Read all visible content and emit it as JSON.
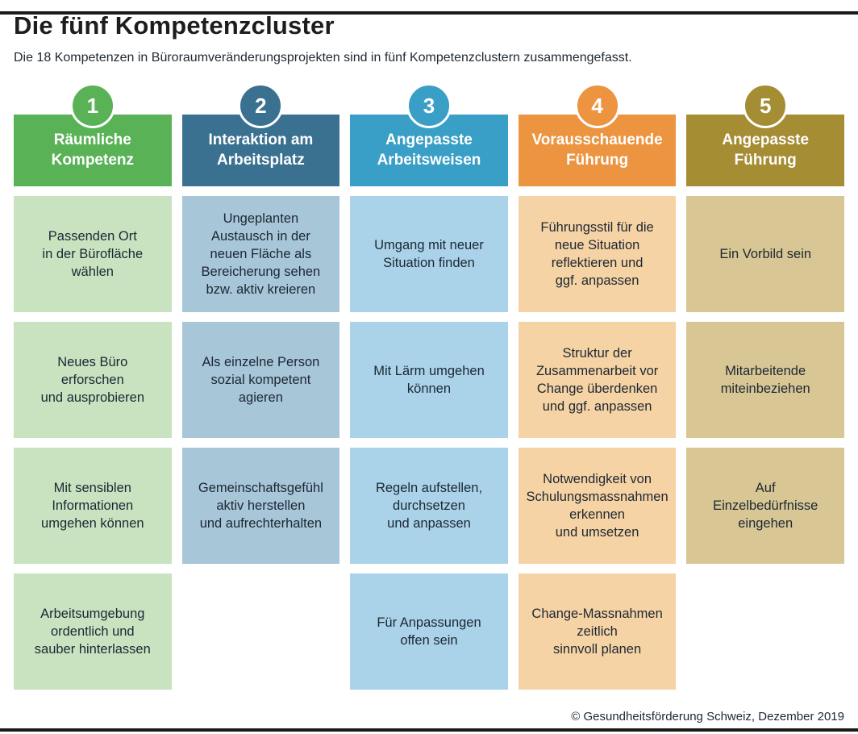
{
  "page": {
    "title": "Die fünf Kompetenzcluster",
    "subtitle": "Die 18 Kompetenzen in Büroraumveränderungsprojekten sind in fünf Kompetenzclustern zusammengefasst.",
    "footer": "© Gesundheitsförderung Schweiz, Dezember 2019"
  },
  "clusters": [
    {
      "number": "1",
      "title": "Räumliche\nKompetenz",
      "color": "#5ab257",
      "light_color": "#c9e3c0",
      "items": [
        "Passenden Ort\nin der Bürofläche\nwählen",
        "Neues Büro\nerforschen\nund ausprobieren",
        "Mit sensiblen\nInformationen\numgehen können",
        "Arbeitsumgebung\nordentlich und\nsauber hinterlassen"
      ]
    },
    {
      "number": "2",
      "title": "Interaktion am\nArbeitsplatz",
      "color": "#3a7191",
      "light_color": "#a7c6d8",
      "items": [
        "Ungeplanten\nAustausch in der\nneuen Fläche als\nBereicherung sehen\nbzw. aktiv kreieren",
        "Als einzelne Person\nsozial kompetent\nagieren",
        "Gemeinschaftsgefühl\naktiv herstellen\nund aufrechterhalten"
      ]
    },
    {
      "number": "3",
      "title": "Angepasste\nArbeitsweisen",
      "color": "#399fc6",
      "light_color": "#aad3e9",
      "items": [
        "Umgang mit neuer\nSituation finden",
        "Mit Lärm umgehen\nkönnen",
        "Regeln aufstellen,\ndurchsetzen\nund anpassen",
        "Für Anpassungen\noffen sein"
      ]
    },
    {
      "number": "4",
      "title": "Vorausschauende\nFührung",
      "color": "#ec9440",
      "light_color": "#f6d3a4",
      "items": [
        "Führungsstil für die\nneue Situation\nreflektieren und\nggf. anpassen",
        "Struktur der\nZusammenarbeit vor\nChange überdenken\nund ggf. anpassen",
        "Notwendigkeit von\nSchulungsmassnahmen\nerkennen\nund umsetzen",
        "Change-Massnahmen\nzeitlich\nsinnvoll planen"
      ]
    },
    {
      "number": "5",
      "title": "Angepasste\nFührung",
      "color": "#a58d33",
      "light_color": "#d8c794",
      "items": [
        "Ein Vorbild sein",
        "Mitarbeitende\nmiteinbeziehen",
        "Auf\nEinzelbedürfnisse\neingehen"
      ]
    }
  ]
}
